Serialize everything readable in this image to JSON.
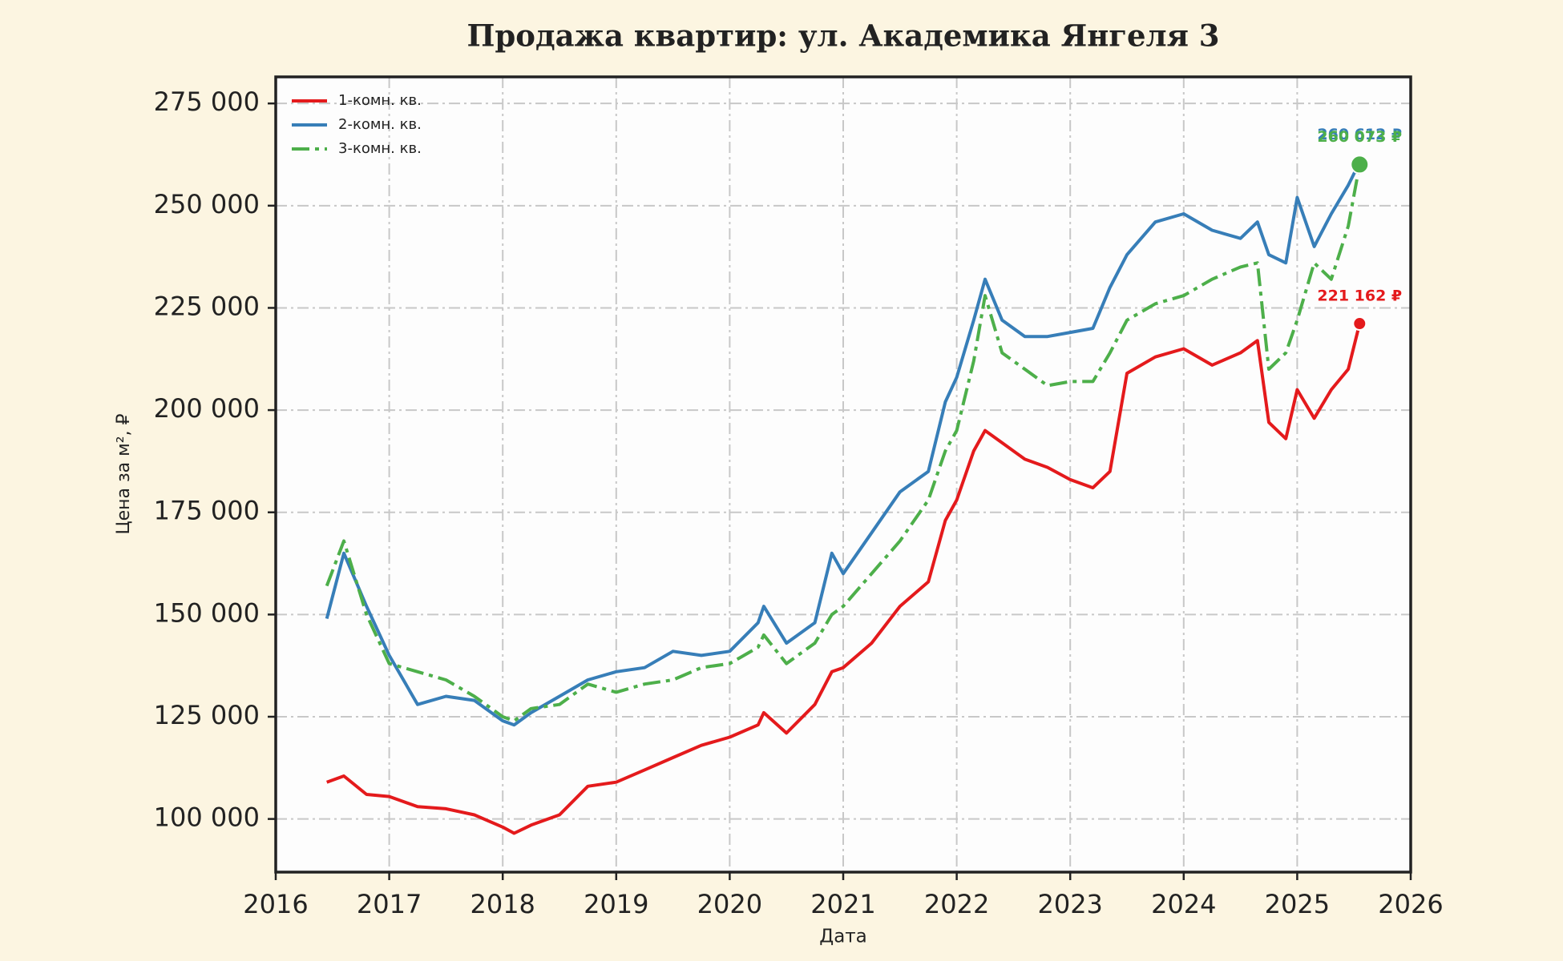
{
  "chart_data": {
    "type": "line",
    "title": "Продажа квартир: ул. Академика Янгеля 3",
    "x_label": "Дата",
    "y_label": "Цена за м², ₽",
    "xlim": [
      2016,
      2026
    ],
    "xticks": [
      2016,
      2017,
      2018,
      2019,
      2020,
      2021,
      2022,
      2023,
      2024,
      2025,
      2026
    ],
    "ylim": [
      87000,
      281500
    ],
    "yticks": [
      {
        "value": 100000,
        "label": "100 000"
      },
      {
        "value": 125000,
        "label": "125 000"
      },
      {
        "value": 150000,
        "label": "150 000"
      },
      {
        "value": 175000,
        "label": "175 000"
      },
      {
        "value": 200000,
        "label": "200 000"
      },
      {
        "value": 225000,
        "label": "225 000"
      },
      {
        "value": 250000,
        "label": "250 000"
      },
      {
        "value": 275000,
        "label": "275 000"
      }
    ],
    "grid": true,
    "legend": "upper-left",
    "x": [
      2016.45,
      2016.6,
      2016.8,
      2017.0,
      2017.25,
      2017.5,
      2017.75,
      2018.0,
      2018.1,
      2018.25,
      2018.5,
      2018.75,
      2019.0,
      2019.25,
      2019.5,
      2019.75,
      2020.0,
      2020.25,
      2020.3,
      2020.5,
      2020.75,
      2020.9,
      2021.0,
      2021.25,
      2021.5,
      2021.75,
      2021.9,
      2022.0,
      2022.15,
      2022.25,
      2022.4,
      2022.6,
      2022.8,
      2023.0,
      2023.2,
      2023.35,
      2023.5,
      2023.75,
      2024.0,
      2024.25,
      2024.5,
      2024.65,
      2024.75,
      2024.9,
      2025.0,
      2025.15,
      2025.3,
      2025.45,
      2025.55
    ],
    "series": [
      {
        "name": "1-комн. кв.",
        "color": "#e41a1c",
        "style": "solid",
        "end_label": "221 162 ₽",
        "values": [
          109000,
          110500,
          106000,
          105500,
          103000,
          102500,
          101000,
          98000,
          96500,
          98500,
          101000,
          108000,
          109000,
          112000,
          115000,
          118000,
          120000,
          123000,
          126000,
          121000,
          128000,
          136000,
          137000,
          143000,
          152000,
          158000,
          173000,
          178000,
          190000,
          195000,
          192000,
          188000,
          186000,
          183000,
          181000,
          185000,
          209000,
          213000,
          215000,
          211000,
          214000,
          217000,
          197000,
          193000,
          205000,
          198000,
          205000,
          210000,
          221162
        ]
      },
      {
        "name": "2-комн. кв.",
        "color": "#377eb8",
        "style": "solid",
        "end_label": "260 612 ₽",
        "values": [
          149000,
          165000,
          152000,
          140000,
          128000,
          130000,
          129000,
          124000,
          123000,
          126000,
          130000,
          134000,
          136000,
          137000,
          141000,
          140000,
          141000,
          148000,
          152000,
          143000,
          148000,
          165000,
          160000,
          170000,
          180000,
          185000,
          202000,
          208000,
          222000,
          232000,
          222000,
          218000,
          218000,
          219000,
          220000,
          230000,
          238000,
          246000,
          248000,
          244000,
          242000,
          246000,
          238000,
          236000,
          252000,
          240000,
          248000,
          255000,
          260612
        ]
      },
      {
        "name": "3-комн. кв.",
        "color": "#4daf4a",
        "style": "dashdot",
        "end_label": "260 073 ₽",
        "values": [
          157000,
          168000,
          150000,
          138000,
          136000,
          134000,
          130000,
          125000,
          124000,
          127000,
          128000,
          133000,
          131000,
          133000,
          134000,
          137000,
          138000,
          142000,
          145000,
          138000,
          143000,
          150000,
          152000,
          160000,
          168000,
          178000,
          190000,
          195000,
          212000,
          228000,
          214000,
          210000,
          206000,
          207000,
          207000,
          214000,
          222000,
          226000,
          228000,
          232000,
          235000,
          236000,
          210000,
          214000,
          222000,
          236000,
          232000,
          245000,
          260073
        ]
      }
    ]
  }
}
